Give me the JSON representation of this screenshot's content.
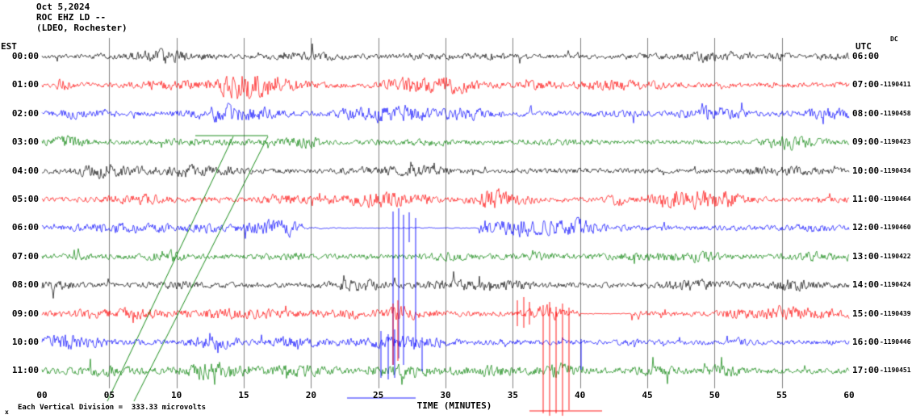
{
  "header": {
    "date": "Oct 5,2024",
    "station": "ROC EHZ LD --",
    "location": "(LDEO, Rochester)"
  },
  "axes": {
    "left_label": "EST",
    "right_label": "UTC",
    "dc_label": "DC",
    "x_title": "TIME (MINUTES)",
    "footer_note": "Each Vertical Division =  333.33 microvolts",
    "footer_marker": "x"
  },
  "chart_data": {
    "type": "seismogram",
    "title": "ROC EHZ LD -- (LDEO, Rochester) Oct 5,2024",
    "xlabel": "TIME (MINUTES)",
    "xlim": [
      0,
      60
    ],
    "minutes_per_row": 60,
    "grid": true,
    "colors_cycle": [
      "#000000",
      "#ff0000",
      "#0000ff",
      "#008000"
    ],
    "x_ticks": [
      "00",
      "05",
      "10",
      "15",
      "20",
      "25",
      "30",
      "35",
      "40",
      "45",
      "50",
      "55",
      "60"
    ],
    "rows": [
      {
        "est": "00:00",
        "utc": "06:00",
        "offset": "",
        "color": "#000000",
        "seed": 11,
        "base": 3.8,
        "burst": 10
      },
      {
        "est": "01:00",
        "utc": "07:00",
        "offset": "-1190411",
        "color": "#ff0000",
        "seed": 22,
        "base": 4.2,
        "burst": 13,
        "extra": [
          {
            "c": 15,
            "w": 1.2,
            "a": 9
          },
          {
            "c": 28,
            "w": 1.5,
            "a": 8
          }
        ]
      },
      {
        "est": "02:00",
        "utc": "08:00",
        "offset": "-1190458",
        "color": "#0000ff",
        "seed": 33,
        "base": 4.0,
        "burst": 13,
        "extra": [
          {
            "c": 13,
            "w": 1.5,
            "a": 9
          },
          {
            "c": 27,
            "w": 1.2,
            "a": 9
          },
          {
            "c": 50,
            "w": 1.5,
            "a": 8
          }
        ]
      },
      {
        "est": "03:00",
        "utc": "09:00",
        "offset": "-1190423",
        "color": "#008000",
        "seed": 44,
        "base": 3.6,
        "burst": 10
      },
      {
        "est": "04:00",
        "utc": "10:00",
        "offset": "-1190434",
        "color": "#000000",
        "seed": 55,
        "base": 4.0,
        "burst": 11
      },
      {
        "est": "05:00",
        "utc": "11:00",
        "offset": "-1190464",
        "color": "#ff0000",
        "seed": 66,
        "base": 4.2,
        "burst": 12,
        "extra": [
          {
            "c": 25,
            "w": 2.0,
            "a": 8
          },
          {
            "c": 34,
            "w": 1.5,
            "a": 8
          }
        ]
      },
      {
        "est": "06:00",
        "utc": "12:00",
        "offset": "-1190460",
        "color": "#0000ff",
        "seed": 77,
        "base": 4.0,
        "burst": 12,
        "quiet": [
          [
            19.5,
            32.5
          ]
        ],
        "extra": [
          {
            "c": 35.5,
            "w": 2.2,
            "a": 9
          }
        ]
      },
      {
        "est": "07:00",
        "utc": "13:00",
        "offset": "-1190422",
        "color": "#008000",
        "seed": 88,
        "base": 4.4,
        "burst": 8
      },
      {
        "est": "08:00",
        "utc": "14:00",
        "offset": "-1190424",
        "color": "#000000",
        "seed": 99,
        "base": 4.4,
        "burst": 8
      },
      {
        "est": "09:00",
        "utc": "15:00",
        "offset": "-1190439",
        "color": "#ff0000",
        "seed": 110,
        "base": 4.2,
        "burst": 12,
        "quiet": [
          [
            40,
            43.8
          ]
        ],
        "extra": [
          {
            "c": 26.8,
            "w": 0.8,
            "a": 9
          },
          {
            "c": 37.5,
            "w": 1.0,
            "a": 8
          }
        ]
      },
      {
        "est": "10:00",
        "utc": "16:00",
        "offset": "-1190446",
        "color": "#0000ff",
        "seed": 121,
        "base": 4.0,
        "burst": 10,
        "extra": [
          {
            "c": 26,
            "w": 1.5,
            "a": 7
          }
        ]
      },
      {
        "est": "11:00",
        "utc": "17:00",
        "offset": "-1190451",
        "color": "#008000",
        "seed": 132,
        "base": 4.4,
        "burst": 10,
        "extra": [
          {
            "c": 27,
            "w": 2.0,
            "a": 7
          },
          {
            "c": 38.5,
            "w": 1.0,
            "a": 8
          }
        ]
      }
    ],
    "overlays": [
      {
        "name": "green-diagonal-artifact-1",
        "color": "#008000",
        "segments": [
          [
            133,
            497,
            289,
            169
          ]
        ]
      },
      {
        "name": "green-diagonal-artifact-2",
        "color": "#008000",
        "segments": [
          [
            166,
            497,
            332,
            169
          ]
        ]
      },
      {
        "name": "green-step-0300",
        "color": "#008000",
        "segments": [
          [
            242,
            168,
            332,
            168
          ]
        ]
      },
      {
        "name": "blue-event-spikes-0600",
        "color": "#0000ff",
        "segments": [
          [
            487,
            262,
            487,
            452
          ],
          [
            494,
            258,
            494,
            444
          ],
          [
            500,
            266,
            500,
            452
          ],
          [
            507,
            263,
            507,
            300
          ],
          [
            515,
            270,
            515,
            430
          ]
        ]
      },
      {
        "name": "blue-event-spikes-1000",
        "color": "#0000ff",
        "segments": [
          [
            472,
            410,
            472,
            468
          ],
          [
            481,
            414,
            481,
            470
          ],
          [
            489,
            408,
            489,
            468
          ],
          [
            523,
            418,
            523,
            460
          ],
          [
            720,
            420,
            720,
            458
          ]
        ]
      },
      {
        "name": "blue-overflow-baseline",
        "color": "#0000ff",
        "segments": [
          [
            430,
            493,
            515,
            493
          ]
        ]
      },
      {
        "name": "red-event-spikes-0900-a",
        "color": "#ff0000",
        "segments": [
          [
            487,
            376,
            487,
            452
          ],
          [
            493,
            372,
            493,
            447
          ]
        ]
      },
      {
        "name": "red-event-spikes-0900-b",
        "color": "#ff0000",
        "segments": [
          [
            641,
            372,
            641,
            404
          ],
          [
            649,
            368,
            649,
            406
          ],
          [
            656,
            374,
            656,
            402
          ]
        ]
      },
      {
        "name": "red-event-spikes-0900-c",
        "color": "#ff0000",
        "segments": [
          [
            673,
            378,
            673,
            512
          ],
          [
            681,
            374,
            681,
            515
          ],
          [
            689,
            380,
            689,
            512
          ],
          [
            697,
            376,
            697,
            515
          ],
          [
            705,
            381,
            705,
            508
          ]
        ]
      },
      {
        "name": "red-overflow-baseline",
        "color": "#ff0000",
        "segments": [
          [
            656,
            509,
            746,
            509
          ]
        ]
      }
    ],
    "grid_color": "#808080"
  }
}
